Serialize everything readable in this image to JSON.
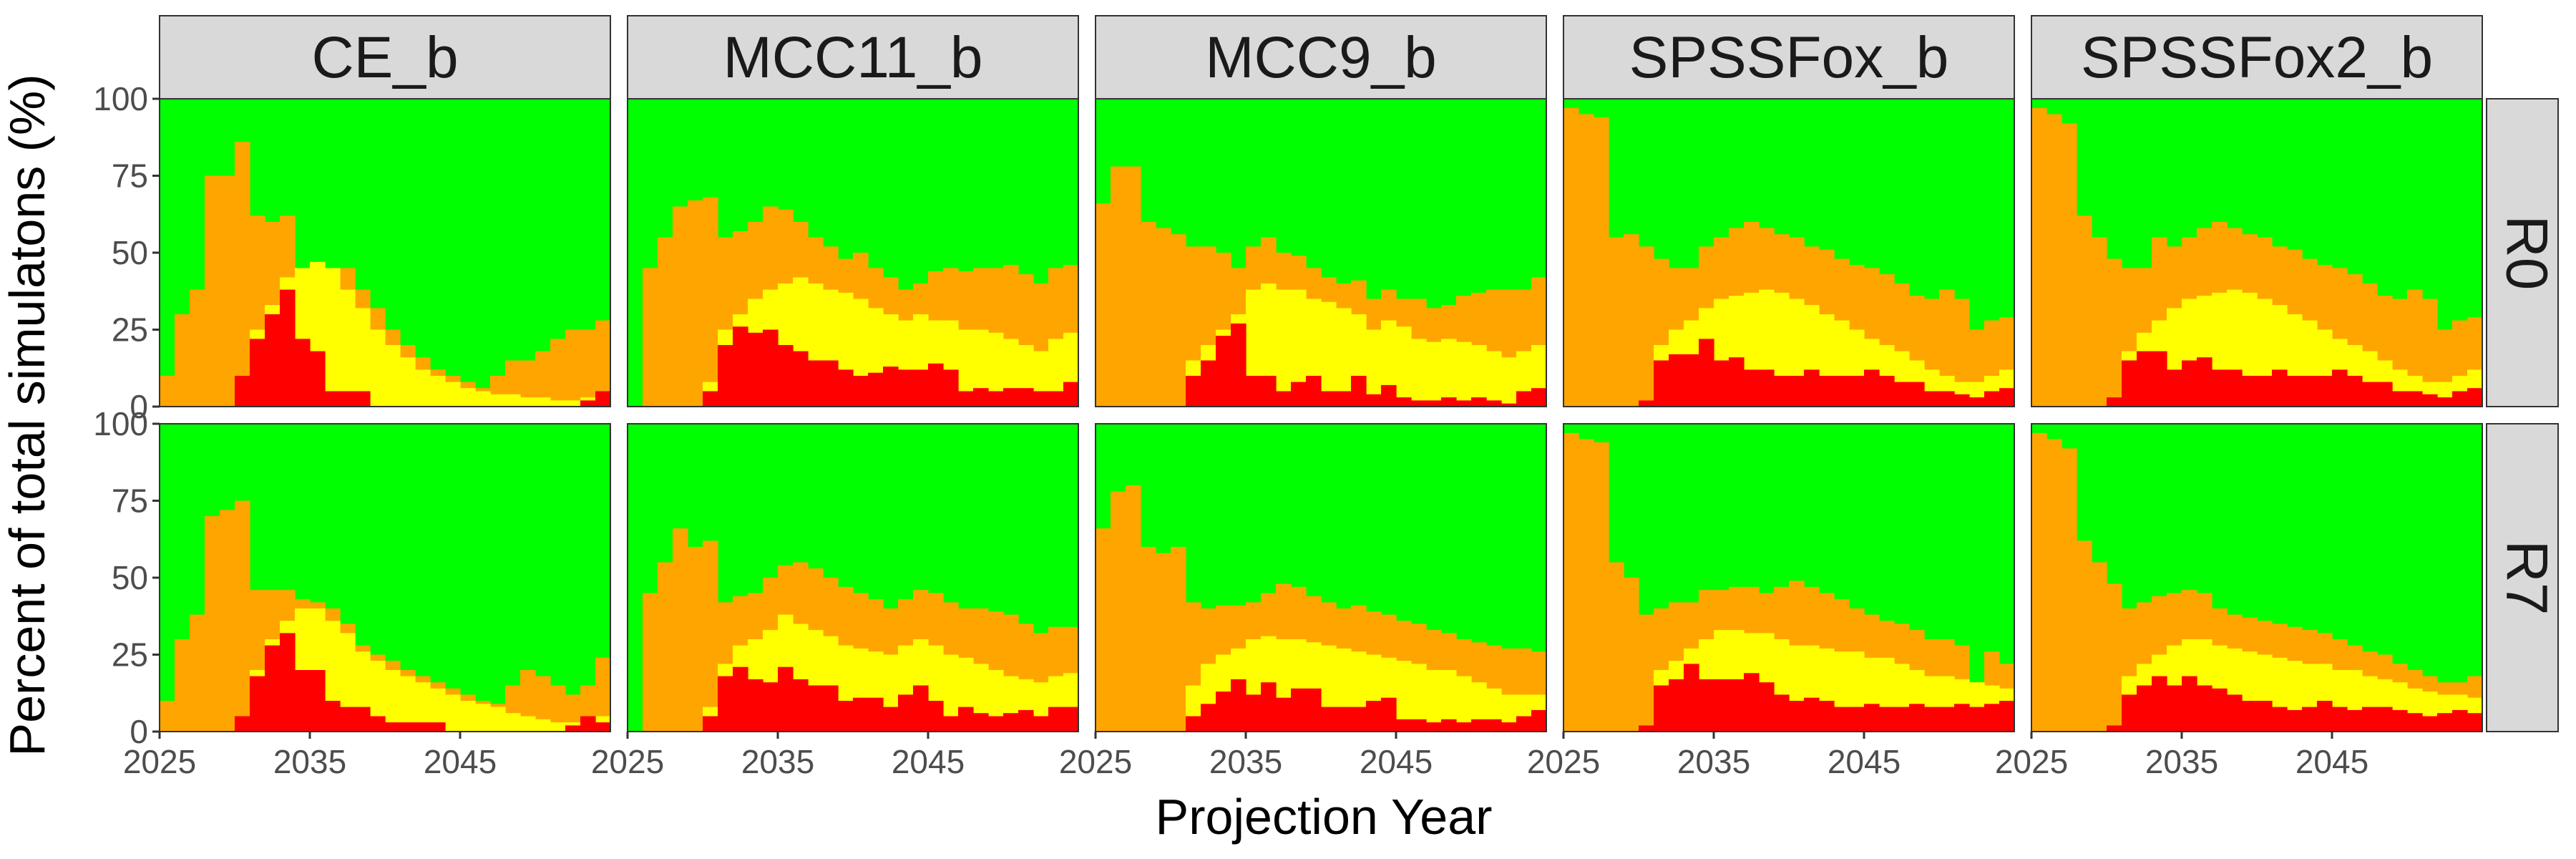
{
  "chart_data": {
    "type": "area",
    "subtype": "stacked-step",
    "xlabel": "Projection Year",
    "ylabel": "Percent of total simulatons (%)",
    "x_start": 2025,
    "x_ticks": [
      "2025",
      "2035",
      "2045"
    ],
    "y_ticks": [
      "0",
      "25",
      "50",
      "75",
      "100"
    ],
    "ylim": [
      0,
      100
    ],
    "grid": false,
    "legend": "none",
    "columns": [
      "CE_b",
      "MCC11_b",
      "MCC9_b",
      "SPSSFox_b",
      "SPSSFox2_b"
    ],
    "rows": [
      "R0",
      "R7"
    ],
    "years": [
      2025,
      2026,
      2027,
      2028,
      2029,
      2030,
      2031,
      2032,
      2033,
      2034,
      2035,
      2036,
      2037,
      2038,
      2039,
      2040,
      2041,
      2042,
      2043,
      2044,
      2045,
      2046,
      2047,
      2048,
      2049,
      2050,
      2051,
      2052,
      2053,
      2054
    ],
    "series": [
      {
        "color": "#ff0000"
      },
      {
        "color": "#ffff00"
      },
      {
        "color": "#ffa500"
      },
      {
        "color": "#00ff00"
      }
    ],
    "panels": [
      {
        "row": "R0",
        "column": "CE_b",
        "cum_red": [
          0,
          0,
          0,
          0,
          0,
          10,
          22,
          30,
          38,
          22,
          18,
          5,
          5,
          5,
          0,
          0,
          0,
          0,
          0,
          0,
          0,
          0,
          0,
          0,
          0,
          0,
          0,
          0,
          2,
          5
        ],
        "cum_yellow": [
          0,
          0,
          0,
          0,
          0,
          10,
          25,
          33,
          42,
          45,
          47,
          45,
          38,
          32,
          25,
          20,
          16,
          12,
          10,
          8,
          6,
          5,
          4,
          4,
          3,
          3,
          2,
          2,
          3,
          5
        ],
        "cum_orange": [
          10,
          30,
          38,
          75,
          75,
          86,
          62,
          60,
          62,
          45,
          47,
          45,
          45,
          38,
          32,
          25,
          20,
          16,
          12,
          10,
          8,
          6,
          10,
          15,
          15,
          18,
          22,
          25,
          25,
          28
        ]
      },
      {
        "row": "R0",
        "column": "MCC11_b",
        "cum_red": [
          0,
          0,
          0,
          0,
          0,
          5,
          20,
          26,
          24,
          25,
          20,
          18,
          15,
          15,
          12,
          10,
          11,
          13,
          12,
          12,
          14,
          12,
          5,
          6,
          5,
          6,
          6,
          5,
          5,
          8
        ],
        "cum_yellow": [
          0,
          0,
          0,
          0,
          0,
          8,
          25,
          30,
          35,
          38,
          40,
          42,
          40,
          38,
          37,
          35,
          32,
          30,
          28,
          30,
          28,
          28,
          25,
          25,
          24,
          22,
          20,
          18,
          22,
          24
        ],
        "cum_orange": [
          0,
          45,
          55,
          65,
          67,
          68,
          55,
          57,
          60,
          65,
          64,
          60,
          55,
          52,
          48,
          50,
          45,
          42,
          38,
          40,
          44,
          45,
          44,
          45,
          45,
          46,
          43,
          40,
          45,
          46
        ]
      },
      {
        "row": "R0",
        "column": "MCC9_b",
        "cum_red": [
          0,
          0,
          0,
          0,
          0,
          0,
          10,
          15,
          23,
          27,
          10,
          10,
          5,
          8,
          10,
          5,
          5,
          10,
          4,
          7,
          3,
          2,
          2,
          3,
          2,
          3,
          2,
          1,
          5,
          6
        ],
        "cum_yellow": [
          0,
          0,
          0,
          0,
          0,
          0,
          15,
          20,
          25,
          30,
          38,
          40,
          38,
          38,
          35,
          34,
          32,
          30,
          25,
          28,
          26,
          22,
          21,
          22,
          21,
          20,
          18,
          16,
          18,
          20
        ],
        "cum_orange": [
          66,
          78,
          78,
          60,
          58,
          56,
          52,
          52,
          50,
          45,
          52,
          55,
          50,
          49,
          45,
          42,
          40,
          41,
          35,
          38,
          35,
          35,
          32,
          33,
          36,
          37,
          38,
          38,
          38,
          42
        ]
      },
      {
        "row": "R0",
        "column": "SPSSFox_b",
        "cum_red": [
          0,
          0,
          0,
          0,
          0,
          2,
          15,
          17,
          17,
          22,
          15,
          16,
          12,
          12,
          10,
          10,
          12,
          10,
          10,
          10,
          12,
          10,
          8,
          8,
          5,
          5,
          4,
          3,
          5,
          6
        ],
        "cum_yellow": [
          0,
          0,
          0,
          0,
          0,
          2,
          20,
          25,
          28,
          32,
          35,
          36,
          37,
          38,
          37,
          35,
          33,
          30,
          28,
          25,
          22,
          20,
          18,
          15,
          12,
          10,
          8,
          8,
          10,
          12
        ],
        "cum_orange": [
          97,
          95,
          94,
          55,
          56,
          52,
          48,
          45,
          45,
          52,
          55,
          58,
          60,
          58,
          56,
          55,
          52,
          51,
          48,
          46,
          45,
          43,
          40,
          36,
          35,
          38,
          35,
          25,
          28,
          29
        ]
      },
      {
        "row": "R0",
        "column": "SPSSFox2_b",
        "cum_red": [
          0,
          0,
          0,
          0,
          0,
          3,
          15,
          18,
          18,
          12,
          15,
          16,
          12,
          12,
          10,
          10,
          12,
          10,
          10,
          10,
          12,
          10,
          8,
          8,
          5,
          5,
          4,
          3,
          5,
          6
        ],
        "cum_yellow": [
          0,
          0,
          0,
          0,
          0,
          3,
          18,
          24,
          28,
          32,
          35,
          36,
          37,
          38,
          37,
          35,
          33,
          30,
          28,
          25,
          22,
          20,
          18,
          15,
          12,
          10,
          8,
          8,
          10,
          12
        ],
        "cum_orange": [
          97,
          95,
          92,
          62,
          55,
          48,
          45,
          45,
          55,
          52,
          55,
          58,
          60,
          58,
          56,
          55,
          52,
          51,
          48,
          46,
          45,
          43,
          40,
          36,
          35,
          38,
          35,
          25,
          28,
          29
        ]
      },
      {
        "row": "R7",
        "column": "CE_b",
        "cum_red": [
          0,
          0,
          0,
          0,
          0,
          5,
          18,
          28,
          32,
          20,
          20,
          10,
          8,
          8,
          5,
          3,
          3,
          3,
          3,
          0,
          0,
          0,
          0,
          0,
          0,
          0,
          0,
          2,
          5,
          3
        ],
        "cum_yellow": [
          0,
          0,
          0,
          0,
          0,
          5,
          20,
          30,
          36,
          40,
          40,
          36,
          32,
          26,
          23,
          20,
          18,
          16,
          14,
          12,
          10,
          9,
          8,
          6,
          5,
          4,
          3,
          3,
          5,
          5
        ],
        "cum_orange": [
          10,
          30,
          38,
          70,
          72,
          75,
          46,
          46,
          46,
          43,
          42,
          40,
          35,
          28,
          25,
          23,
          20,
          18,
          16,
          14,
          12,
          10,
          9,
          15,
          20,
          18,
          15,
          12,
          15,
          24
        ]
      },
      {
        "row": "R7",
        "column": "MCC11_b",
        "cum_red": [
          0,
          0,
          0,
          0,
          0,
          5,
          18,
          21,
          17,
          16,
          21,
          17,
          15,
          15,
          10,
          11,
          11,
          8,
          12,
          15,
          10,
          5,
          8,
          6,
          5,
          6,
          7,
          5,
          8,
          8
        ],
        "cum_yellow": [
          0,
          0,
          0,
          0,
          0,
          8,
          22,
          28,
          30,
          33,
          38,
          35,
          33,
          31,
          28,
          27,
          26,
          25,
          28,
          30,
          28,
          25,
          24,
          22,
          20,
          18,
          17,
          16,
          18,
          19
        ],
        "cum_orange": [
          0,
          45,
          55,
          66,
          60,
          62,
          42,
          44,
          45,
          50,
          54,
          55,
          53,
          50,
          47,
          45,
          43,
          40,
          43,
          46,
          45,
          42,
          40,
          40,
          39,
          38,
          35,
          32,
          34,
          34
        ]
      },
      {
        "row": "R7",
        "column": "MCC9_b",
        "cum_red": [
          0,
          0,
          0,
          0,
          0,
          0,
          5,
          9,
          13,
          17,
          12,
          16,
          11,
          14,
          14,
          8,
          8,
          8,
          10,
          11,
          4,
          4,
          3,
          4,
          3,
          4,
          4,
          3,
          5,
          7
        ],
        "cum_yellow": [
          0,
          0,
          0,
          0,
          0,
          0,
          15,
          22,
          25,
          27,
          30,
          31,
          30,
          30,
          29,
          28,
          27,
          26,
          25,
          24,
          23,
          22,
          20,
          20,
          18,
          16,
          14,
          12,
          12,
          12
        ],
        "cum_orange": [
          66,
          78,
          80,
          60,
          58,
          60,
          42,
          40,
          41,
          41,
          42,
          45,
          48,
          47,
          44,
          42,
          40,
          41,
          39,
          38,
          36,
          35,
          33,
          32,
          30,
          29,
          28,
          27,
          27,
          26
        ]
      },
      {
        "row": "R7",
        "column": "SPSSFox_b",
        "cum_red": [
          0,
          0,
          0,
          0,
          0,
          2,
          15,
          17,
          22,
          17,
          17,
          17,
          19,
          16,
          12,
          10,
          11,
          10,
          8,
          8,
          9,
          8,
          8,
          9,
          8,
          8,
          9,
          8,
          9,
          10
        ],
        "cum_yellow": [
          0,
          0,
          0,
          0,
          0,
          2,
          20,
          23,
          27,
          30,
          33,
          33,
          32,
          32,
          30,
          28,
          28,
          27,
          26,
          26,
          24,
          24,
          22,
          20,
          18,
          18,
          17,
          16,
          15,
          14
        ],
        "cum_orange": [
          97,
          95,
          94,
          55,
          50,
          38,
          40,
          42,
          42,
          46,
          46,
          47,
          47,
          45,
          47,
          49,
          47,
          45,
          43,
          40,
          38,
          36,
          35,
          33,
          30,
          30,
          28,
          16,
          26,
          22
        ]
      },
      {
        "row": "R7",
        "column": "SPSSFox2_b",
        "cum_red": [
          0,
          0,
          0,
          0,
          0,
          2,
          12,
          15,
          18,
          15,
          18,
          15,
          14,
          12,
          10,
          10,
          8,
          7,
          8,
          10,
          8,
          7,
          8,
          8,
          7,
          6,
          5,
          6,
          7,
          6
        ],
        "cum_yellow": [
          0,
          0,
          0,
          0,
          0,
          2,
          18,
          22,
          25,
          28,
          30,
          30,
          28,
          27,
          26,
          25,
          24,
          23,
          22,
          22,
          20,
          20,
          18,
          17,
          16,
          14,
          13,
          12,
          12,
          11
        ],
        "cum_orange": [
          97,
          95,
          92,
          62,
          55,
          48,
          40,
          42,
          44,
          45,
          46,
          45,
          40,
          38,
          37,
          36,
          35,
          34,
          33,
          32,
          30,
          28,
          26,
          25,
          22,
          20,
          18,
          16,
          16,
          18
        ]
      }
    ]
  }
}
